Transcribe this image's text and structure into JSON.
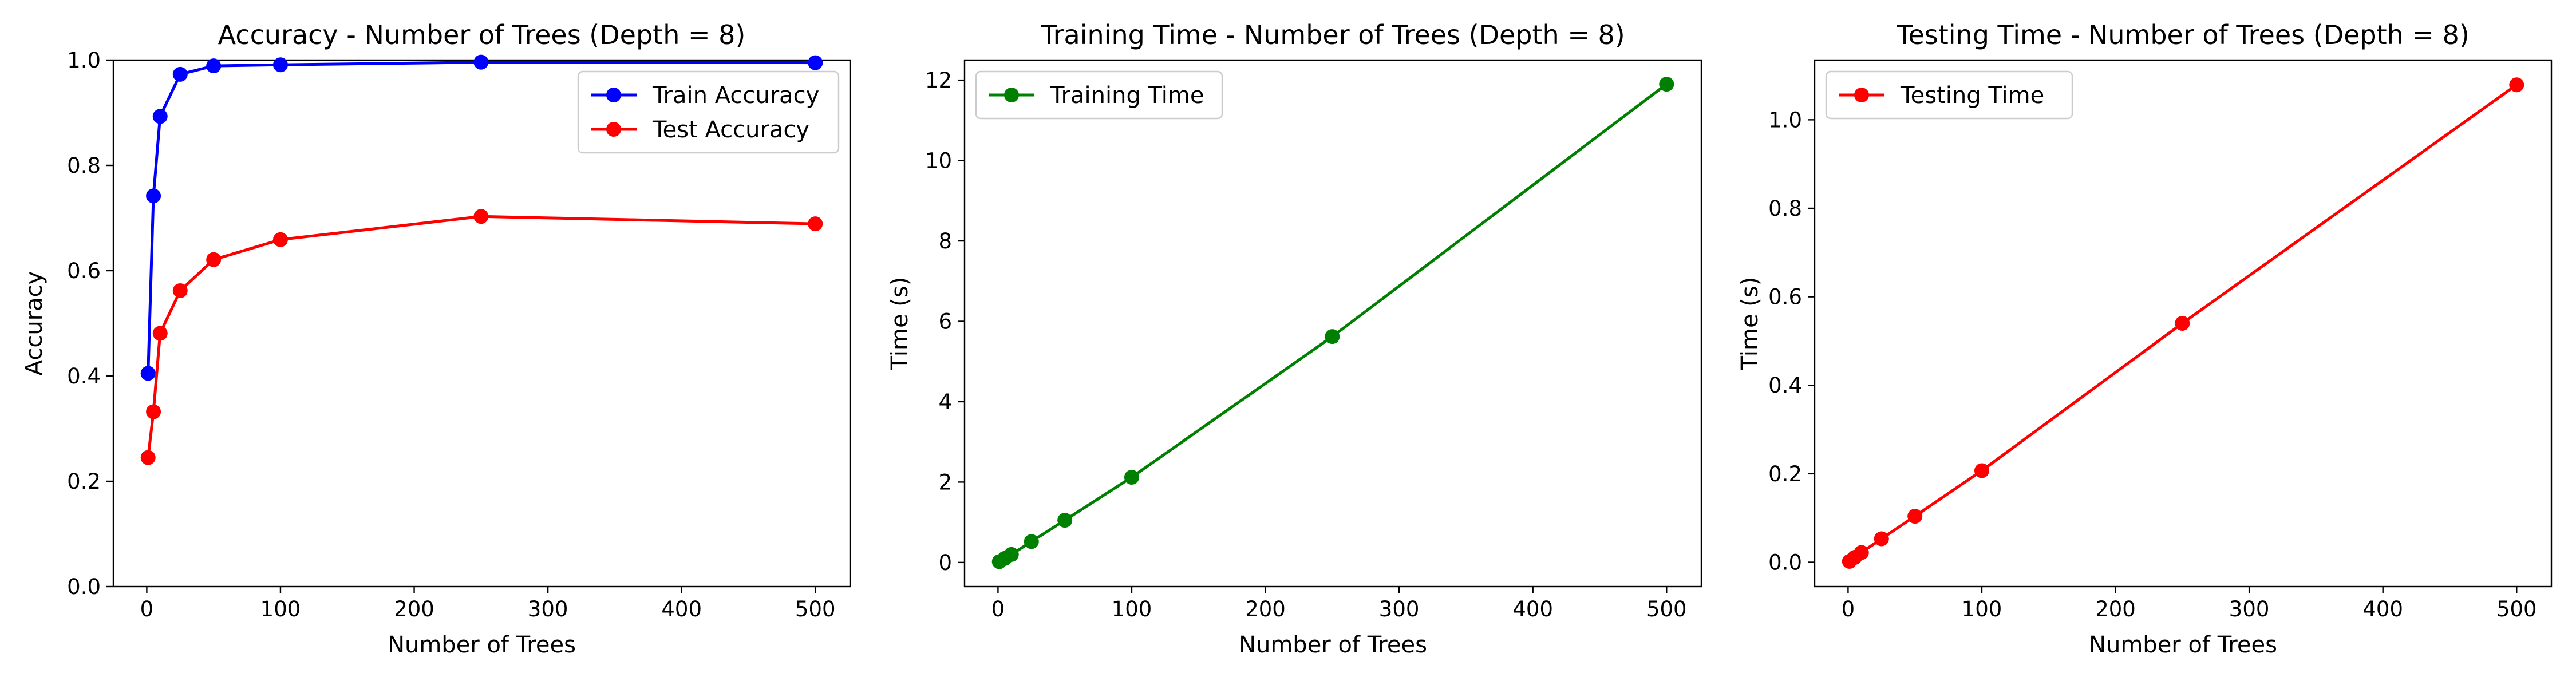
{
  "chart_data": [
    {
      "type": "line",
      "title": "Accuracy - Number of Trees (Depth = 8)",
      "xlabel": "Number of Trees",
      "ylabel": "Accuracy",
      "xlim": [
        -25,
        526
      ],
      "ylim": [
        0.0,
        1.0
      ],
      "xticks": [
        0,
        100,
        200,
        300,
        400,
        500
      ],
      "xtick_labels": [
        "0",
        "100",
        "200",
        "300",
        "400",
        "500"
      ],
      "yticks": [
        0.0,
        0.2,
        0.4,
        0.6,
        0.8,
        1.0
      ],
      "ytick_labels": [
        "0.0",
        "0.2",
        "0.4",
        "0.6",
        "0.8",
        "1.0"
      ],
      "x": [
        1,
        5,
        10,
        25,
        50,
        100,
        250,
        500
      ],
      "legend_position": "upper right",
      "grid": false,
      "series": [
        {
          "name": "Train Accuracy",
          "color": "#0000ff",
          "values": [
            0.405,
            0.742,
            0.893,
            0.973,
            0.989,
            0.991,
            0.996,
            0.995
          ]
        },
        {
          "name": "Test Accuracy",
          "color": "#ff0000",
          "values": [
            0.245,
            0.332,
            0.481,
            0.562,
            0.621,
            0.659,
            0.703,
            0.689
          ]
        }
      ]
    },
    {
      "type": "line",
      "title": "Training Time - Number of Trees (Depth = 8)",
      "xlabel": "Number of Trees",
      "ylabel": "Time (s)",
      "xlim": [
        -25,
        526
      ],
      "ylim": [
        -0.6,
        12.5
      ],
      "xticks": [
        0,
        100,
        200,
        300,
        400,
        500
      ],
      "xtick_labels": [
        "0",
        "100",
        "200",
        "300",
        "400",
        "500"
      ],
      "yticks": [
        0,
        2,
        4,
        6,
        8,
        10,
        12
      ],
      "ytick_labels": [
        "0",
        "2",
        "4",
        "6",
        "8",
        "10",
        "12"
      ],
      "x": [
        1,
        5,
        10,
        25,
        50,
        100,
        250,
        500
      ],
      "legend_position": "upper left",
      "grid": false,
      "series": [
        {
          "name": "Training Time",
          "color": "#008000",
          "values": [
            0.02,
            0.1,
            0.2,
            0.52,
            1.05,
            2.12,
            5.62,
            11.9
          ]
        }
      ]
    },
    {
      "type": "line",
      "title": "Testing Time - Number of Trees (Depth = 8)",
      "xlabel": "Number of Trees",
      "ylabel": "Time (s)",
      "xlim": [
        -25,
        526
      ],
      "ylim": [
        -0.055,
        1.135
      ],
      "xticks": [
        0,
        100,
        200,
        300,
        400,
        500
      ],
      "xtick_labels": [
        "0",
        "100",
        "200",
        "300",
        "400",
        "500"
      ],
      "yticks": [
        0.0,
        0.2,
        0.4,
        0.6,
        0.8,
        1.0
      ],
      "ytick_labels": [
        "0.0",
        "0.2",
        "0.4",
        "0.6",
        "0.8",
        "1.0"
      ],
      "x": [
        1,
        5,
        10,
        25,
        50,
        100,
        250,
        500
      ],
      "legend_position": "upper left",
      "grid": false,
      "series": [
        {
          "name": "Testing Time",
          "color": "#ff0000",
          "values": [
            0.002,
            0.011,
            0.022,
            0.053,
            0.104,
            0.207,
            0.54,
            1.079
          ]
        }
      ]
    }
  ]
}
